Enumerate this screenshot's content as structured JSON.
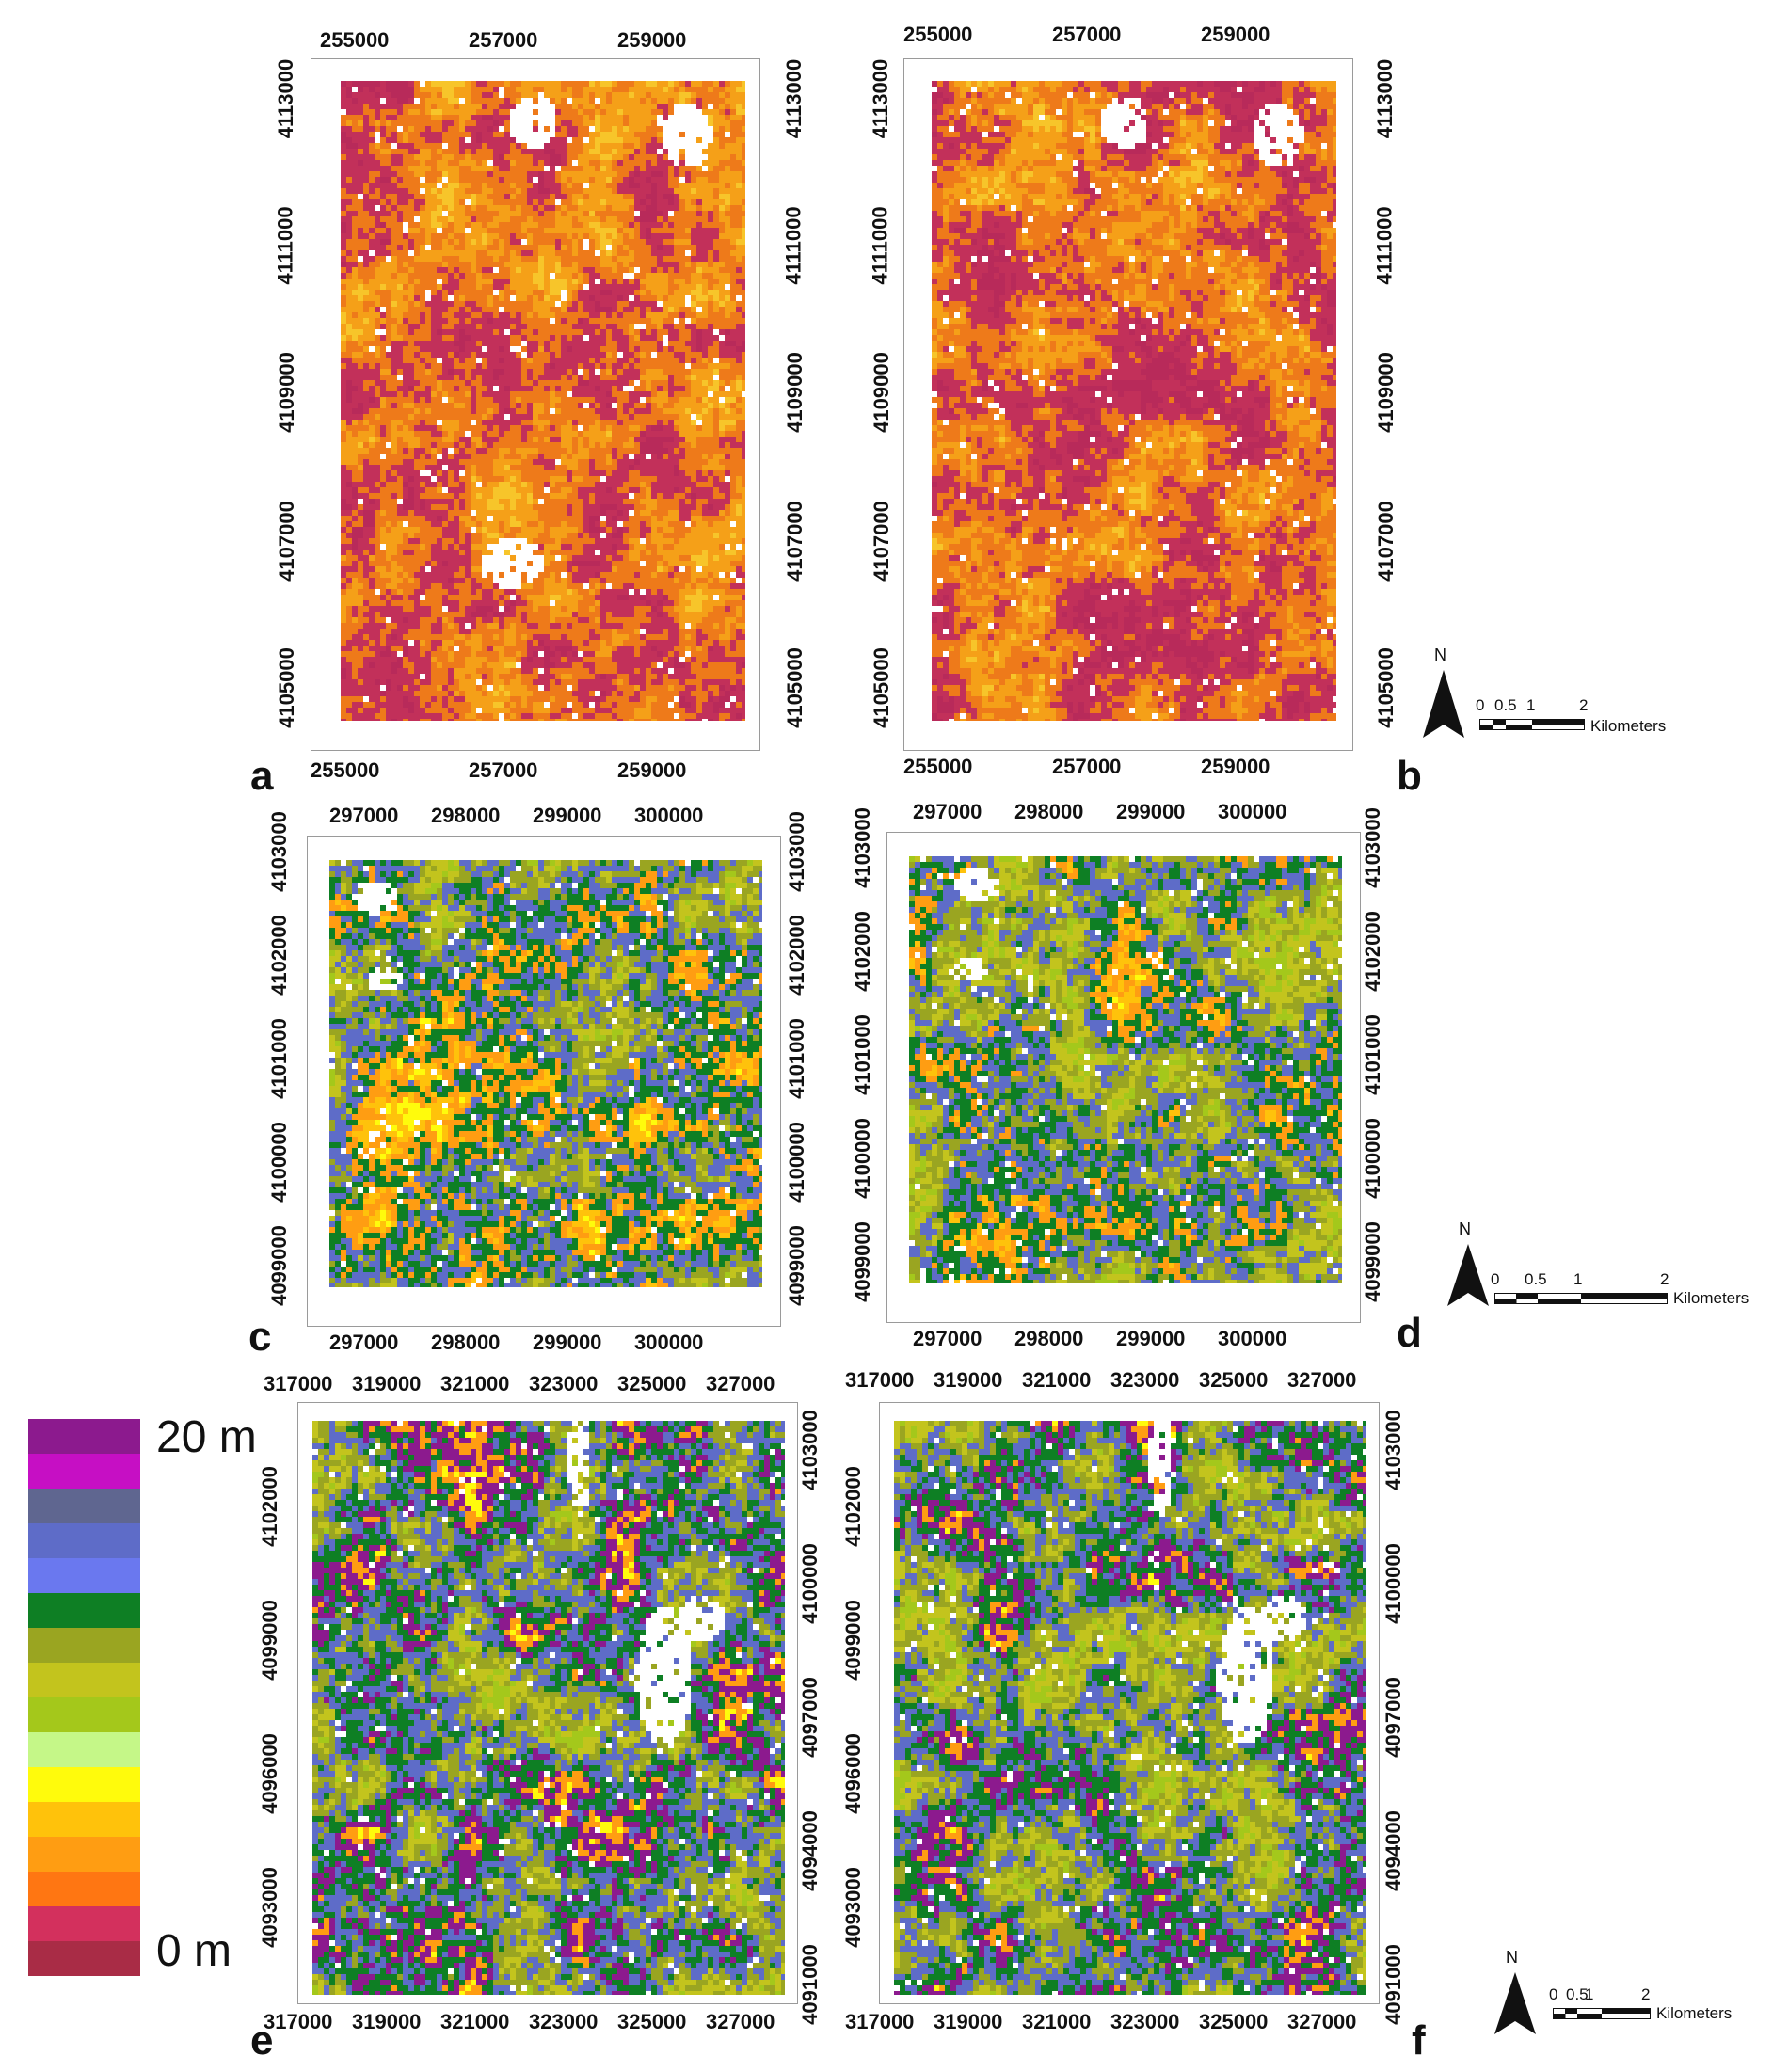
{
  "panels": [
    {
      "id": "a",
      "label": "a",
      "xticks": [
        "255000",
        "257000",
        "259000"
      ],
      "yticks": [
        "4113000",
        "4111000",
        "4109000",
        "4107000",
        "4105000"
      ]
    },
    {
      "id": "b",
      "label": "b",
      "xticks": [
        "255000",
        "257000",
        "259000"
      ],
      "yticks": [
        "4113000",
        "4111000",
        "4109000",
        "4107000",
        "4105000"
      ]
    },
    {
      "id": "c",
      "label": "c",
      "xticks": [
        "297000",
        "298000",
        "299000",
        "300000"
      ],
      "yticks": [
        "4103000",
        "4102000",
        "4101000",
        "4100000",
        "4099000"
      ]
    },
    {
      "id": "d",
      "label": "d",
      "xticks": [
        "297000",
        "298000",
        "299000",
        "300000"
      ],
      "yticks": [
        "4103000",
        "4102000",
        "4101000",
        "4100000",
        "4099000"
      ]
    },
    {
      "id": "e",
      "label": "e",
      "xticks": [
        "317000",
        "319000",
        "321000",
        "323000",
        "325000",
        "327000"
      ],
      "yticks": [
        "4103000",
        "4102000",
        "4100000",
        "4099000",
        "4097000",
        "4096000",
        "4094000",
        "4093000",
        "4091000"
      ]
    },
    {
      "id": "f",
      "label": "f",
      "xticks": [
        "317000",
        "319000",
        "321000",
        "323000",
        "325000",
        "327000"
      ],
      "yticks": [
        "4103000",
        "4102000",
        "4100000",
        "4099000",
        "4097000",
        "4096000",
        "4094000",
        "4093000",
        "4091000"
      ]
    }
  ],
  "legend": {
    "max_label": "20 m",
    "min_label": "0 m",
    "colors": [
      "#8c1a8e",
      "#c60fc4",
      "#5f6690",
      "#5e6cc8",
      "#6a78ef",
      "#0e7f24",
      "#9aa521",
      "#c3c41d",
      "#a4c81b",
      "#c5f788",
      "#fffb0c",
      "#ffc20b",
      "#ff9d12",
      "#ff7612",
      "#d3305d",
      "#a92c46"
    ]
  },
  "scalebars": [
    {
      "north": "N",
      "numbers": [
        "0",
        "0.5",
        "1",
        "2"
      ],
      "unit": "Kilometers"
    },
    {
      "north": "N",
      "numbers": [
        "0",
        "0.5",
        "1",
        "2"
      ],
      "unit": "Kilometers"
    },
    {
      "north": "N",
      "numbers": [
        "0",
        "0.5",
        "1",
        "2"
      ],
      "unit": "Kilometers"
    }
  ],
  "palettes": {
    "ab": [
      "#b82a5a",
      "#c2305a",
      "#ee7a1a",
      "#f5a018",
      "#f7c52a",
      "#ffffff"
    ],
    "cd": [
      "#a4c81b",
      "#c3c41d",
      "#9aa521",
      "#5e6cc8",
      "#0e7f24",
      "#ff9d12",
      "#ffc20b",
      "#fffb0c",
      "#ffffff"
    ],
    "ef": [
      "#a4c81b",
      "#c3c41d",
      "#9aa521",
      "#5e6cc8",
      "#0e7f24",
      "#8c1a8e",
      "#ff9d12",
      "#fffb0c",
      "#ffffff"
    ]
  }
}
